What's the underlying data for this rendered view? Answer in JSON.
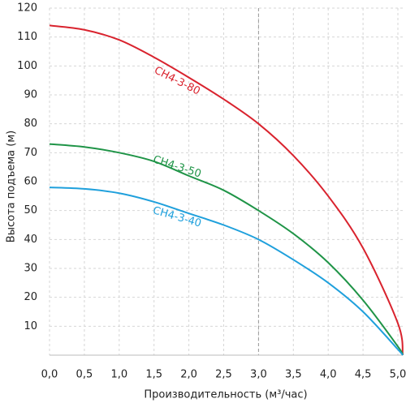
{
  "chart_data": {
    "type": "line",
    "x_label": "Производительность (м³/час)",
    "y_label": "Высота подъема (м)",
    "x": [
      0,
      0.5,
      1.0,
      1.5,
      2.0,
      2.5,
      3.0,
      3.5,
      4.0,
      4.5,
      5.0,
      5.07
    ],
    "series": [
      {
        "name": "CH4-3-80",
        "color": "#d9232e",
        "values": [
          114,
          112.5,
          109,
          103,
          96,
          88.5,
          80,
          69,
          55,
          37,
          11,
          0
        ]
      },
      {
        "name": "CH4-3-50",
        "color": "#1f9447",
        "values": [
          73,
          72,
          70,
          67,
          62,
          57,
          50,
          42,
          32,
          19,
          3,
          0
        ]
      },
      {
        "name": "CH4-3-40",
        "color": "#1fa0dc",
        "values": [
          58,
          57.5,
          56,
          53,
          49,
          45,
          40,
          33,
          25,
          15,
          2,
          0
        ]
      }
    ],
    "xlim": [
      0,
      5.07
    ],
    "ylim": [
      0,
      120
    ],
    "xticks": [
      {
        "value": 0,
        "label": "0,0"
      },
      {
        "value": 0.5,
        "label": "0,5"
      },
      {
        "value": 1.0,
        "label": "1,0"
      },
      {
        "value": 1.5,
        "label": "1,5"
      },
      {
        "value": 2.0,
        "label": "2,0"
      },
      {
        "value": 2.5,
        "label": "2,5"
      },
      {
        "value": 3.0,
        "label": "3,0"
      },
      {
        "value": 3.5,
        "label": "3,5"
      },
      {
        "value": 4.0,
        "label": "4,0"
      },
      {
        "value": 4.5,
        "label": "4,5"
      },
      {
        "value": 5.0,
        "label": "5,0"
      }
    ],
    "yticks": [
      10,
      20,
      30,
      40,
      50,
      60,
      70,
      80,
      90,
      100,
      110,
      120
    ],
    "grid": true,
    "reference_x": 3.0
  }
}
